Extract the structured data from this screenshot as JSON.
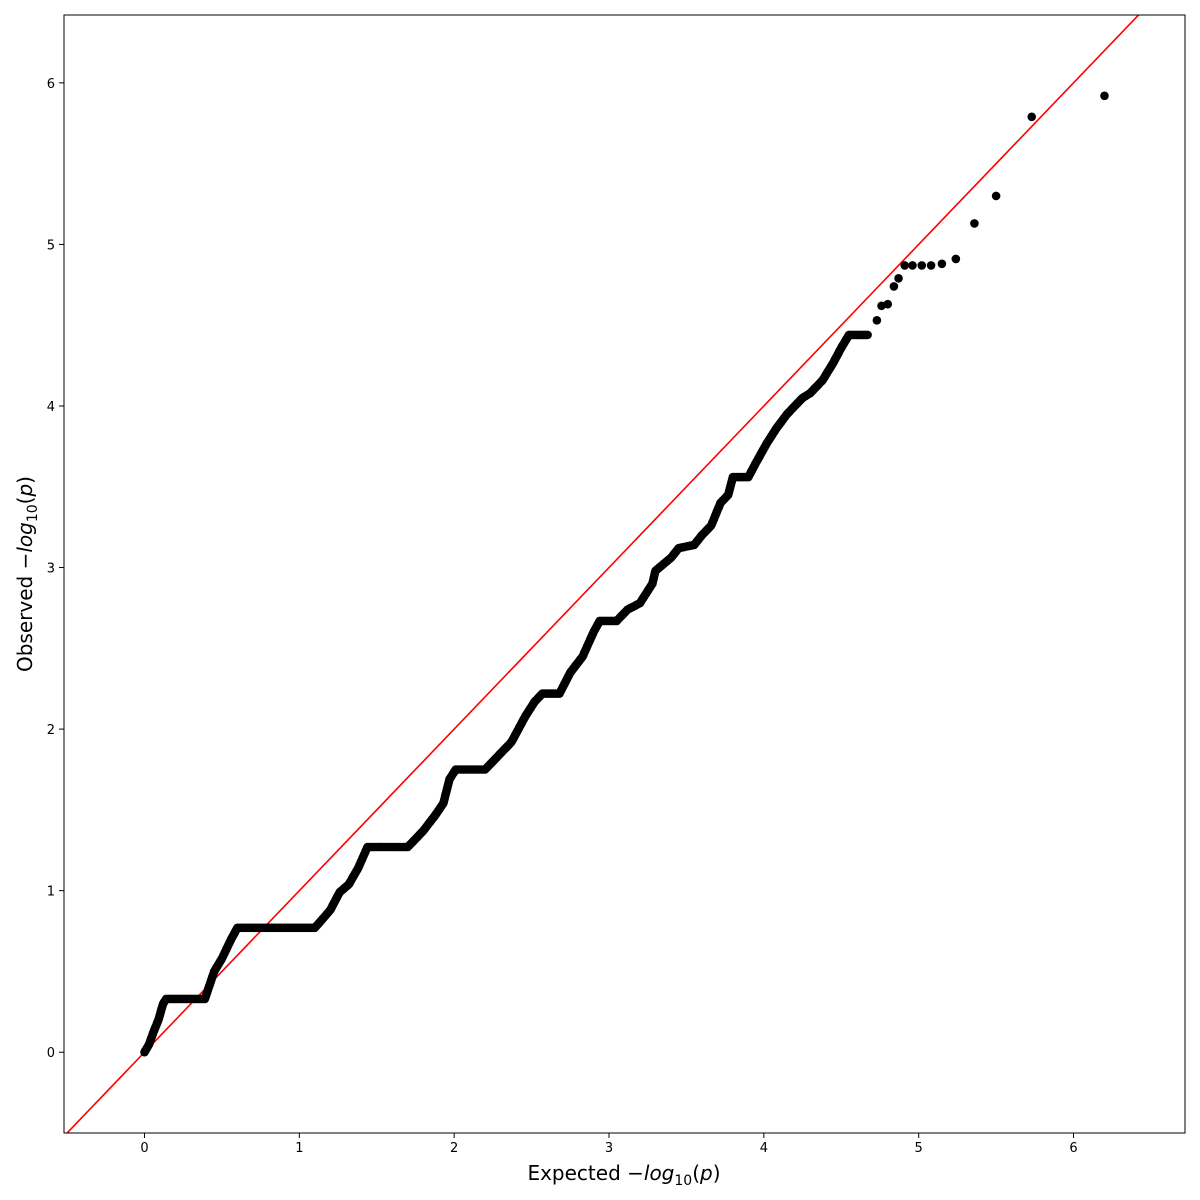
{
  "chart_data": {
    "type": "scatter",
    "title": "",
    "xlabel": "Expected −log10(p)",
    "ylabel": "Observed −log10(p)",
    "xlim": [
      -0.52,
      6.72
    ],
    "ylim": [
      -0.5,
      6.42
    ],
    "x_ticks": [
      "0",
      "1",
      "2",
      "3",
      "4",
      "5",
      "6"
    ],
    "y_ticks": [
      "0",
      "1",
      "2",
      "3",
      "4",
      "5",
      "6"
    ],
    "grid": false,
    "legend": "none",
    "reference_line": {
      "label": "y = x",
      "color": "#ff0000"
    },
    "point_color": "#000000",
    "curve": [
      [
        0.0,
        0.0
      ],
      [
        0.03,
        0.05
      ],
      [
        0.06,
        0.13
      ],
      [
        0.09,
        0.2
      ],
      [
        0.12,
        0.3
      ],
      [
        0.14,
        0.33
      ],
      [
        0.39,
        0.33
      ],
      [
        0.45,
        0.5
      ],
      [
        0.5,
        0.58
      ],
      [
        0.56,
        0.7
      ],
      [
        0.6,
        0.77
      ],
      [
        1.1,
        0.77
      ],
      [
        1.2,
        0.88
      ],
      [
        1.26,
        0.99
      ],
      [
        1.32,
        1.04
      ],
      [
        1.38,
        1.14
      ],
      [
        1.44,
        1.27
      ],
      [
        1.7,
        1.27
      ],
      [
        1.8,
        1.37
      ],
      [
        1.88,
        1.47
      ],
      [
        1.93,
        1.54
      ],
      [
        1.97,
        1.69
      ],
      [
        2.01,
        1.75
      ],
      [
        2.2,
        1.75
      ],
      [
        2.3,
        1.85
      ],
      [
        2.37,
        1.92
      ],
      [
        2.46,
        2.08
      ],
      [
        2.52,
        2.17
      ],
      [
        2.57,
        2.22
      ],
      [
        2.68,
        2.22
      ],
      [
        2.75,
        2.35
      ],
      [
        2.83,
        2.45
      ],
      [
        2.9,
        2.6
      ],
      [
        2.94,
        2.67
      ],
      [
        3.05,
        2.67
      ],
      [
        3.12,
        2.74
      ],
      [
        3.2,
        2.78
      ],
      [
        3.28,
        2.9
      ],
      [
        3.3,
        2.98
      ],
      [
        3.4,
        3.06
      ],
      [
        3.45,
        3.12
      ],
      [
        3.55,
        3.14
      ],
      [
        3.6,
        3.2
      ],
      [
        3.66,
        3.26
      ],
      [
        3.72,
        3.4
      ],
      [
        3.77,
        3.45
      ],
      [
        3.8,
        3.56
      ],
      [
        3.9,
        3.56
      ],
      [
        3.95,
        3.65
      ],
      [
        4.02,
        3.77
      ],
      [
        4.08,
        3.86
      ],
      [
        4.15,
        3.95
      ],
      [
        4.2,
        4.0
      ],
      [
        4.25,
        4.05
      ],
      [
        4.3,
        4.08
      ],
      [
        4.38,
        4.16
      ],
      [
        4.45,
        4.27
      ],
      [
        4.5,
        4.36
      ],
      [
        4.55,
        4.44
      ],
      [
        4.67,
        4.44
      ]
    ],
    "outliers": [
      [
        4.73,
        4.53
      ],
      [
        4.76,
        4.62
      ],
      [
        4.8,
        4.63
      ],
      [
        4.84,
        4.74
      ],
      [
        4.87,
        4.79
      ],
      [
        4.91,
        4.87
      ],
      [
        4.96,
        4.87
      ],
      [
        5.02,
        4.87
      ],
      [
        5.08,
        4.87
      ],
      [
        5.15,
        4.88
      ],
      [
        5.24,
        4.91
      ],
      [
        5.36,
        5.13
      ],
      [
        5.5,
        5.3
      ],
      [
        5.73,
        5.79
      ],
      [
        6.2,
        5.92
      ]
    ]
  }
}
